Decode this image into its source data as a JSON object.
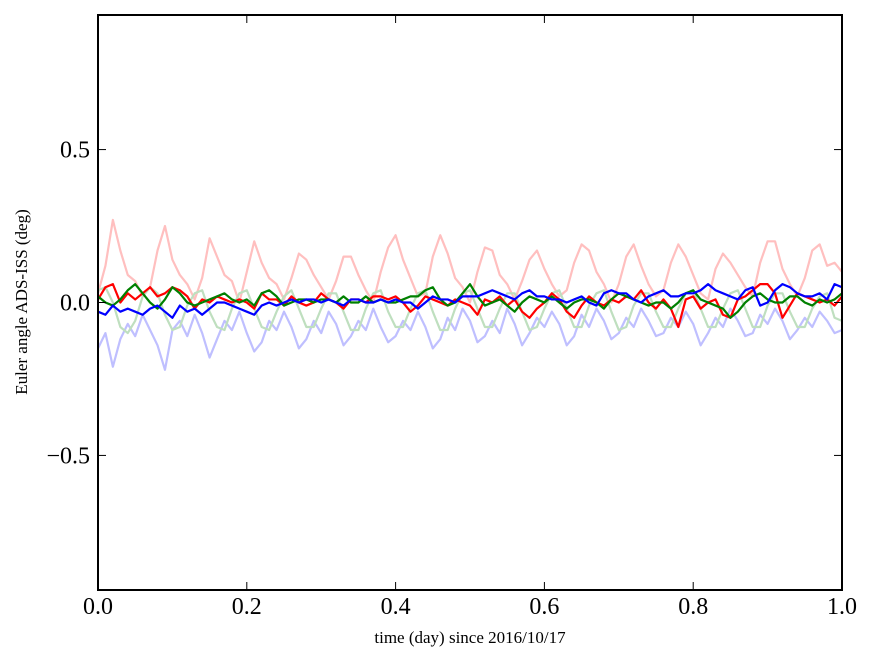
{
  "chart_data": {
    "type": "line",
    "title": "",
    "xlabel": "time (day) since 2016/10/17",
    "ylabel": "Euler angle ADS-ISS (deg)",
    "xlim": [
      0,
      1
    ],
    "ylim": [
      -0.94,
      0.94
    ],
    "grid": false,
    "xticks": [
      0.0,
      0.2,
      0.4,
      0.6,
      0.8,
      1.0
    ],
    "xtick_labels": [
      "0.0",
      "0.2",
      "0.4",
      "0.6",
      "0.8",
      "1.0"
    ],
    "yticks": [
      -0.5,
      0.0,
      0.5
    ],
    "ytick_labels": [
      "−0.5",
      "0.0",
      "0.5"
    ],
    "x": [
      0.0,
      0.01,
      0.02,
      0.03,
      0.04,
      0.05,
      0.06,
      0.07,
      0.08,
      0.09,
      0.1,
      0.11,
      0.12,
      0.13,
      0.14,
      0.15,
      0.16,
      0.17,
      0.18,
      0.19,
      0.2,
      0.21,
      0.22,
      0.23,
      0.24,
      0.25,
      0.26,
      0.27,
      0.28,
      0.29,
      0.3,
      0.31,
      0.32,
      0.33,
      0.34,
      0.35,
      0.36,
      0.37,
      0.38,
      0.39,
      0.4,
      0.41,
      0.42,
      0.43,
      0.44,
      0.45,
      0.46,
      0.47,
      0.48,
      0.49,
      0.5,
      0.51,
      0.52,
      0.53,
      0.54,
      0.55,
      0.56,
      0.57,
      0.58,
      0.59,
      0.6,
      0.61,
      0.62,
      0.63,
      0.64,
      0.65,
      0.66,
      0.67,
      0.68,
      0.69,
      0.7,
      0.71,
      0.72,
      0.73,
      0.74,
      0.75,
      0.76,
      0.77,
      0.78,
      0.79,
      0.8,
      0.81,
      0.82,
      0.83,
      0.84,
      0.85,
      0.86,
      0.87,
      0.88,
      0.89,
      0.9,
      0.91,
      0.92,
      0.93,
      0.94,
      0.95,
      0.96,
      0.97,
      0.98,
      0.99,
      1.0
    ],
    "series": [
      {
        "color": "#ffbfbf",
        "values": [
          0.03,
          0.12,
          0.27,
          0.17,
          0.09,
          0.07,
          0.02,
          0.05,
          0.17,
          0.25,
          0.14,
          0.09,
          0.06,
          0.01,
          0.08,
          0.21,
          0.15,
          0.09,
          0.07,
          0.0,
          0.1,
          0.2,
          0.13,
          0.08,
          0.06,
          0.01,
          0.08,
          0.16,
          0.14,
          0.09,
          0.05,
          0.01,
          0.07,
          0.15,
          0.15,
          0.09,
          0.04,
          0.0,
          0.1,
          0.18,
          0.22,
          0.14,
          0.08,
          0.02,
          0.03,
          0.15,
          0.22,
          0.16,
          0.08,
          0.05,
          0.0,
          0.1,
          0.18,
          0.17,
          0.09,
          0.06,
          0.01,
          0.07,
          0.14,
          0.17,
          0.11,
          0.06,
          0.02,
          0.04,
          0.13,
          0.19,
          0.17,
          0.1,
          0.06,
          0.0,
          0.06,
          0.15,
          0.19,
          0.12,
          0.06,
          0.02,
          0.04,
          0.13,
          0.19,
          0.15,
          0.09,
          0.03,
          0.01,
          0.11,
          0.16,
          0.13,
          0.09,
          0.05,
          0.02,
          0.13,
          0.2,
          0.2,
          0.11,
          0.06,
          0.02,
          0.08,
          0.17,
          0.19,
          0.12,
          0.13,
          0.1
        ]
      },
      {
        "color": "#bfbfff",
        "values": [
          -0.15,
          -0.1,
          -0.21,
          -0.12,
          -0.07,
          -0.11,
          -0.04,
          -0.09,
          -0.14,
          -0.22,
          -0.09,
          -0.06,
          -0.11,
          -0.04,
          -0.1,
          -0.18,
          -0.12,
          -0.06,
          -0.09,
          -0.03,
          -0.1,
          -0.16,
          -0.13,
          -0.06,
          -0.09,
          -0.03,
          -0.08,
          -0.15,
          -0.12,
          -0.06,
          -0.1,
          -0.03,
          -0.07,
          -0.14,
          -0.11,
          -0.06,
          -0.09,
          -0.02,
          -0.08,
          -0.13,
          -0.11,
          -0.06,
          -0.09,
          -0.03,
          -0.08,
          -0.15,
          -0.12,
          -0.05,
          -0.09,
          -0.02,
          -0.06,
          -0.13,
          -0.11,
          -0.06,
          -0.1,
          -0.02,
          -0.07,
          -0.14,
          -0.1,
          -0.05,
          -0.08,
          -0.03,
          -0.07,
          -0.14,
          -0.11,
          -0.04,
          -0.08,
          -0.02,
          -0.06,
          -0.12,
          -0.1,
          -0.05,
          -0.08,
          -0.02,
          -0.06,
          -0.11,
          -0.1,
          -0.05,
          -0.08,
          -0.03,
          -0.07,
          -0.14,
          -0.1,
          -0.05,
          -0.08,
          -0.02,
          -0.06,
          -0.11,
          -0.1,
          -0.04,
          -0.07,
          -0.02,
          -0.06,
          -0.12,
          -0.09,
          -0.05,
          -0.08,
          -0.03,
          -0.06,
          -0.1,
          -0.09
        ]
      },
      {
        "color": "#bfdfbf",
        "values": [
          0.04,
          0.05,
          0.0,
          -0.08,
          -0.1,
          -0.06,
          0.02,
          0.05,
          0.03,
          -0.04,
          -0.09,
          -0.08,
          -0.01,
          0.03,
          0.04,
          -0.03,
          -0.08,
          -0.09,
          -0.02,
          0.03,
          0.04,
          -0.02,
          -0.08,
          -0.09,
          -0.03,
          0.02,
          0.04,
          -0.02,
          -0.08,
          -0.08,
          -0.02,
          0.03,
          0.03,
          -0.03,
          -0.09,
          -0.09,
          -0.02,
          0.03,
          0.04,
          -0.03,
          -0.08,
          -0.08,
          -0.02,
          0.03,
          0.04,
          -0.03,
          -0.09,
          -0.09,
          -0.02,
          0.03,
          0.04,
          -0.02,
          -0.08,
          -0.08,
          -0.02,
          0.03,
          0.03,
          -0.03,
          -0.09,
          -0.08,
          -0.02,
          0.03,
          0.04,
          -0.02,
          -0.08,
          -0.08,
          -0.01,
          0.03,
          0.04,
          -0.03,
          -0.09,
          -0.08,
          -0.01,
          0.03,
          0.03,
          -0.03,
          -0.08,
          -0.08,
          -0.02,
          0.03,
          0.04,
          -0.02,
          -0.08,
          -0.08,
          -0.02,
          0.03,
          0.04,
          -0.02,
          -0.08,
          -0.08,
          -0.01,
          0.03,
          0.03,
          -0.03,
          -0.08,
          -0.08,
          -0.02,
          0.02,
          0.03,
          -0.05,
          -0.06
        ]
      },
      {
        "color": "#ff0000",
        "values": [
          0.01,
          0.05,
          0.06,
          0.0,
          0.03,
          0.01,
          0.03,
          0.05,
          0.02,
          0.03,
          0.05,
          0.04,
          0.02,
          -0.02,
          0.01,
          0.0,
          0.02,
          0.01,
          0.0,
          0.01,
          0.0,
          -0.02,
          0.03,
          0.01,
          0.01,
          -0.01,
          0.02,
          0.0,
          -0.01,
          0.0,
          0.03,
          0.01,
          0.0,
          -0.02,
          0.01,
          0.01,
          0.0,
          0.02,
          0.02,
          0.01,
          0.02,
          0.0,
          -0.03,
          -0.01,
          0.02,
          0.01,
          0.0,
          -0.01,
          0.01,
          0.0,
          -0.01,
          -0.04,
          0.01,
          0.0,
          0.02,
          -0.01,
          0.01,
          -0.03,
          -0.05,
          -0.02,
          0.0,
          0.03,
          0.01,
          -0.03,
          -0.05,
          -0.01,
          0.02,
          0.0,
          -0.01,
          0.01,
          0.0,
          0.02,
          0.01,
          0.04,
          0.0,
          -0.02,
          0.01,
          -0.02,
          -0.08,
          0.01,
          0.02,
          -0.02,
          0.0,
          0.01,
          -0.04,
          -0.05,
          0.01,
          0.02,
          0.04,
          0.06,
          0.06,
          0.03,
          -0.05,
          -0.01,
          0.03,
          0.02,
          0.01,
          0.0,
          0.01,
          -0.01,
          0.02
        ]
      },
      {
        "color": "#008000",
        "values": [
          0.02,
          0.0,
          -0.01,
          0.01,
          0.04,
          0.06,
          0.03,
          0.0,
          -0.02,
          0.01,
          0.05,
          0.03,
          0.0,
          -0.01,
          0.0,
          0.01,
          0.02,
          0.03,
          0.01,
          0.0,
          0.01,
          -0.01,
          0.03,
          0.04,
          0.02,
          -0.01,
          0.0,
          0.01,
          0.01,
          0.0,
          0.01,
          0.01,
          0.0,
          0.02,
          0.0,
          0.0,
          0.02,
          0.0,
          0.01,
          0.0,
          0.0,
          0.01,
          0.02,
          0.02,
          0.04,
          0.05,
          0.01,
          -0.01,
          0.0,
          0.03,
          0.06,
          0.02,
          -0.01,
          0.0,
          0.01,
          -0.01,
          -0.03,
          0.0,
          0.02,
          0.01,
          0.0,
          0.02,
          0.0,
          -0.02,
          0.0,
          0.01,
          0.01,
          0.0,
          -0.02,
          0.01,
          0.03,
          0.02,
          0.01,
          0.0,
          -0.01,
          0.0,
          0.0,
          -0.02,
          0.0,
          0.03,
          0.04,
          0.01,
          0.0,
          -0.01,
          -0.02,
          -0.05,
          -0.03,
          0.0,
          0.02,
          0.03,
          0.01,
          0.0,
          0.0,
          0.02,
          0.02,
          0.0,
          -0.01,
          0.01,
          0.0,
          0.01,
          0.03
        ]
      },
      {
        "color": "#0000ff",
        "values": [
          -0.03,
          -0.04,
          -0.01,
          -0.03,
          -0.02,
          -0.03,
          -0.04,
          -0.02,
          -0.01,
          -0.03,
          -0.05,
          -0.01,
          -0.03,
          -0.02,
          -0.04,
          -0.02,
          0.0,
          0.0,
          -0.01,
          -0.02,
          -0.03,
          -0.04,
          -0.01,
          0.0,
          -0.01,
          0.0,
          0.01,
          0.0,
          0.01,
          0.01,
          0.0,
          0.01,
          0.0,
          -0.01,
          0.01,
          0.01,
          0.0,
          0.0,
          0.01,
          0.0,
          0.01,
          0.0,
          0.0,
          -0.02,
          0.0,
          0.02,
          0.01,
          0.01,
          0.0,
          0.02,
          0.02,
          0.02,
          0.03,
          0.04,
          0.03,
          0.02,
          0.01,
          0.03,
          0.04,
          0.02,
          0.02,
          0.01,
          0.01,
          0.0,
          0.01,
          0.02,
          0.0,
          -0.01,
          0.03,
          0.04,
          0.03,
          0.03,
          0.01,
          0.0,
          0.02,
          0.03,
          0.04,
          0.02,
          0.02,
          0.03,
          0.03,
          0.04,
          0.06,
          0.04,
          0.03,
          0.02,
          0.01,
          0.04,
          0.05,
          -0.01,
          0.0,
          0.04,
          0.06,
          0.05,
          0.03,
          0.02,
          0.02,
          0.03,
          0.01,
          0.06,
          0.05
        ]
      }
    ]
  }
}
